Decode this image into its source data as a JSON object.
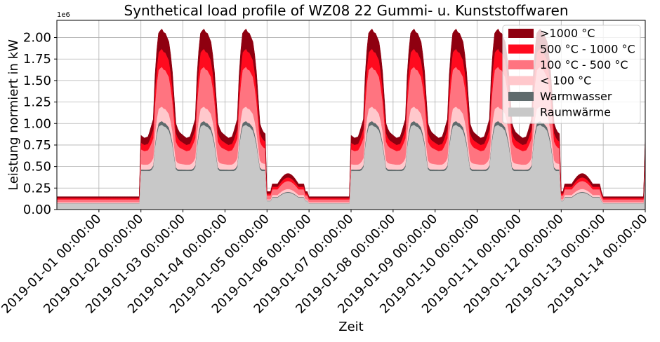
{
  "chart_data": {
    "type": "area",
    "stacked": true,
    "title": "Synthetical load profile of WZ08 22 Gummi- u. Kunststoffwaren",
    "xlabel": "Zeit",
    "ylabel": "Leistung normiert in kW",
    "y_scale_label": "1e6",
    "ylim": [
      0,
      2.2
    ],
    "y_ticks": [
      0.0,
      0.25,
      0.5,
      0.75,
      1.0,
      1.25,
      1.5,
      1.75,
      2.0
    ],
    "y_tick_labels": [
      "0.00",
      "0.25",
      "0.50",
      "0.75",
      "1.00",
      "1.25",
      "1.50",
      "1.75",
      "2.00"
    ],
    "x_range_days": [
      -1.0,
      13.0
    ],
    "x_ticks": [
      0,
      1,
      2,
      3,
      4,
      5,
      6,
      7,
      8,
      9,
      10,
      11,
      12,
      13
    ],
    "x_tick_labels": [
      "2019-01-01 00:00:00",
      "2019-01-02 00:00:00",
      "2019-01-03 00:00:00",
      "2019-01-04 00:00:00",
      "2019-01-05 00:00:00",
      "2019-01-06 00:00:00",
      "2019-01-07 00:00:00",
      "2019-01-08 00:00:00",
      "2019-01-09 00:00:00",
      "2019-01-10 00:00:00",
      "2019-01-11 00:00:00",
      "2019-01-12 00:00:00",
      "2019-01-13 00:00:00",
      "2019-01-14 00:00:00"
    ],
    "grid": true,
    "legend_position": "top-right",
    "series": [
      {
        "name": "Raumwärme",
        "color": "#c8c8c8",
        "values": [
          0.09,
          0.09,
          0.09,
          0.09,
          0.09,
          0.09,
          0.09,
          0.09,
          0.09,
          0.09,
          0.09,
          0.09,
          0.09,
          0.09,
          0.09,
          0.09,
          0.09,
          0.09,
          0.09,
          0.09,
          0.09,
          0.09,
          0.09,
          0.09,
          0.09,
          0.09,
          0.09,
          0.09,
          0.09,
          0.09,
          0.09,
          0.09,
          0.09,
          0.09,
          0.09,
          0.09,
          0.09,
          0.09,
          0.09,
          0.09,
          0.09,
          0.09,
          0.09,
          0.09,
          0.09,
          0.09,
          0.09,
          0.09,
          0.09,
          0.09,
          0.09,
          0.09,
          0.09,
          0.09,
          0.09,
          0.09,
          0.09,
          0.09,
          0.09,
          0.09,
          0.09,
          0.09,
          0.09,
          0.09,
          0.09,
          0.09,
          0.09,
          0.09,
          0.09,
          0.09,
          0.09,
          0.09,
          0.09,
          0.09,
          0.09,
          0.09,
          0.09,
          0.09,
          0.09,
          0.09,
          0.09,
          0.09,
          0.09,
          0.09,
          0.09,
          0.09,
          0.09,
          0.09,
          0.09,
          0.09,
          0.09,
          0.09,
          0.09,
          0.09,
          0.09,
          0.09,
          0.09,
          0.09,
          0.09,
          0.09,
          0.09,
          0.09,
          0.09,
          0.09,
          0.09,
          0.09,
          0.09,
          0.09,
          0.09,
          0.09,
          0.09,
          0.09,
          0.09,
          0.09,
          0.09,
          0.09,
          0.09,
          0.09,
          0.09,
          0.09,
          0.09,
          0.09,
          0.09,
          0.09,
          0.09,
          0.09,
          0.09,
          0.09,
          0.09,
          0.09,
          0.09,
          0.09,
          0.09,
          0.09,
          0.09,
          0.09,
          0.09,
          0.09,
          0.09,
          0.09,
          0.09,
          0.09,
          0.09,
          0.09,
          0.09,
          0.09,
          0.09,
          0.09,
          0.09,
          0.09,
          0.09,
          0.09,
          0.09,
          0.09,
          0.09,
          0.09,
          0.09,
          0.09,
          0.09,
          0.09,
          0.09,
          0.09,
          0.09,
          0.09,
          0.09,
          0.09,
          0.09,
          0.09,
          0.09,
          0.09,
          0.09,
          0.09,
          0.09,
          0.09,
          0.09,
          0.09,
          0.09,
          0.09,
          0.09,
          0.09,
          0.09,
          0.09,
          0.09,
          0.09,
          0.09,
          0.09,
          0.09,
          0.09,
          0.09,
          0.09,
          0.09,
          0.09,
          0.09,
          0.09,
          0.09,
          0.09,
          0.09,
          0.09,
          0.09,
          0.09,
          0.09,
          0.09,
          0.09,
          0.09,
          0.09,
          0.09,
          0.09,
          0.09,
          0.09,
          0.09,
          0.09,
          0.09,
          0.09,
          0.09,
          0.09,
          0.09,
          0.09,
          0.09,
          0.09,
          0.09,
          0.09,
          0.09,
          0.09,
          0.09,
          0.09,
          0.09,
          0.09,
          0.09,
          0.09,
          0.09,
          0.09,
          0.09,
          0.09,
          0.09,
          0.09,
          0.09,
          0.09,
          0.09,
          0.09,
          0.09,
          0.09,
          0.09,
          0.09,
          0.09,
          0.09,
          0.09,
          0.09,
          0.09,
          0.09,
          0.09,
          0.09,
          0.09,
          0.09,
          0.09,
          0.09,
          0.09,
          0.09,
          0.09,
          0.09,
          0.09,
          0.09,
          0.09,
          0.09,
          0.09,
          0.09,
          0.09,
          0.09,
          0.09,
          0.09,
          0.09,
          0.09,
          0.09,
          0.09,
          0.09,
          0.09,
          0.09,
          0.09,
          0.09,
          0.09,
          0.09,
          0.09,
          0.09,
          0.09,
          0.09,
          0.09,
          0.09,
          0.09,
          0.09,
          0.09,
          0.09,
          0.09,
          0.09,
          0.09,
          0.09,
          0.09,
          0.09,
          0.09,
          0.09,
          0.09,
          0.09,
          0.09,
          0.09,
          0.09,
          0.09,
          0.09,
          0.09,
          0.09,
          0.09,
          0.09,
          0.09,
          0.09,
          0.09,
          0.09,
          0.09,
          0.09,
          0.09,
          0.09,
          0.09,
          0.09,
          0.09,
          0.09,
          0.09,
          0.09,
          0.09,
          0.09,
          0.09,
          0.09,
          0.09,
          0.09,
          0.09,
          0.09,
          0.09
        ]
      },
      {
        "name": "Warmwasser",
        "color": "#5f6b6d",
        "values": []
      },
      {
        "name": "< 100 °C",
        "color": "#ffc8cc",
        "values": []
      },
      {
        "name": "100 °C - 500 °C",
        "color": "#ff7480",
        "values": []
      },
      {
        "name": "500 °C - 1000 °C",
        "color": "#ff0a1e",
        "values": []
      },
      {
        "name": ">1000 °C",
        "color": "#8f0010",
        "values": []
      }
    ],
    "daily_profile": {
      "hours": [
        0,
        2,
        4,
        6,
        7,
        8,
        9,
        10,
        11,
        12,
        13,
        14,
        15,
        16,
        17,
        18,
        19,
        20,
        22,
        24
      ],
      "workday_total": [
        0.78,
        0.72,
        0.75,
        0.98,
        1.05,
        1.55,
        1.85,
        2.05,
        2.08,
        2.1,
        2.06,
        2.05,
        2.0,
        1.95,
        1.8,
        1.6,
        1.3,
        1.0,
        0.85,
        0.78
      ],
      "raumwaerme_share": 0.47,
      "warmwasser_share": 0.02,
      "lt100_share": 0.08,
      "t100_500_share": 0.22,
      "t500_1000_share": 0.1,
      "gt1000_share": 0.11
    },
    "weekend_total_max": 0.42,
    "offday_total": 0.15
  },
  "legend": [
    {
      "label": ">1000 °C",
      "color": "#8f0010"
    },
    {
      "label": "500 °C - 1000 °C",
      "color": "#ff0a1e"
    },
    {
      "label": "100 °C - 500 °C",
      "color": "#ff7480"
    },
    {
      "label": "< 100 °C",
      "color": "#ffc8cc"
    },
    {
      "label": "Warmwasser",
      "color": "#5f6b6d"
    },
    {
      "label": "Raumwärme",
      "color": "#c8c8c8"
    }
  ]
}
